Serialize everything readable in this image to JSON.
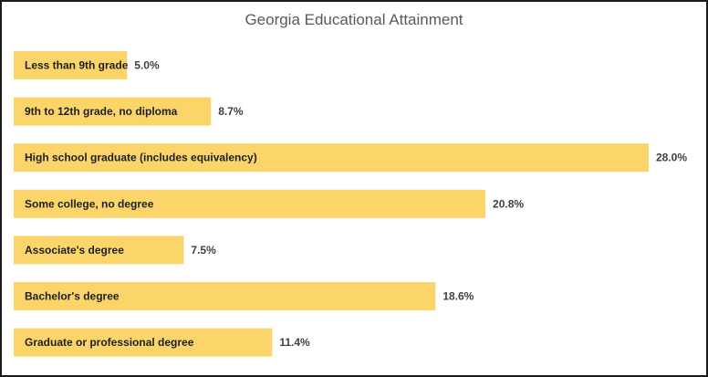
{
  "chart_data": {
    "type": "bar",
    "orientation": "horizontal",
    "title": "Georgia Educational Attainment",
    "categories": [
      "Less than 9th grade",
      "9th to 12th grade, no diploma",
      "High school graduate (includes equivalency)",
      "Some college, no degree",
      "Associate's degree",
      "Bachelor's degree",
      "Graduate or professional degree"
    ],
    "values": [
      5.0,
      8.7,
      28.0,
      20.8,
      7.5,
      18.6,
      11.4
    ],
    "value_labels": [
      "5.0%",
      "8.7%",
      "28.0%",
      "20.8%",
      "7.5%",
      "18.6%",
      "11.4%"
    ],
    "xlim": [
      0,
      28.0
    ],
    "grid": false,
    "legend": "none",
    "colors": {
      "bar": "#FBD569"
    }
  }
}
